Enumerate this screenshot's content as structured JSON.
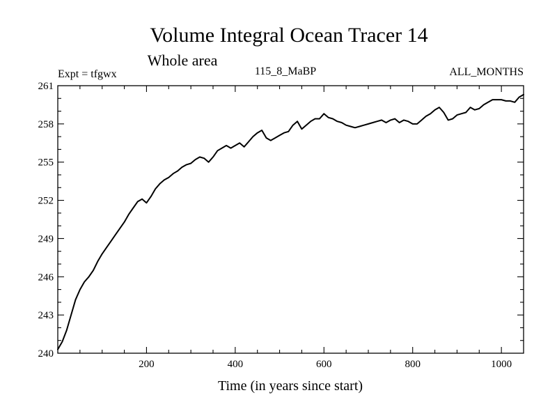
{
  "chart_data": {
    "type": "line",
    "title": "Volume Integral Ocean Tracer 14",
    "subtitle": "Whole area",
    "annotations": {
      "left": "Expt = tfgwx",
      "center": "115_8_MaBP",
      "right": "ALL_MONTHS"
    },
    "xlabel": "Time (in years since start)",
    "ylabel": "",
    "xlim": [
      0,
      1050
    ],
    "ylim": [
      240,
      261
    ],
    "xticks": [
      200,
      400,
      600,
      800,
      1000
    ],
    "yticks": [
      240,
      243,
      246,
      249,
      252,
      255,
      258,
      261
    ],
    "grid": false,
    "series": [
      {
        "color": "#000000",
        "x": [
          0,
          10,
          20,
          30,
          40,
          50,
          60,
          70,
          80,
          90,
          100,
          110,
          120,
          130,
          140,
          150,
          160,
          170,
          180,
          190,
          200,
          210,
          220,
          230,
          240,
          250,
          260,
          270,
          280,
          290,
          300,
          310,
          320,
          330,
          340,
          350,
          360,
          370,
          380,
          390,
          400,
          410,
          420,
          430,
          440,
          450,
          460,
          470,
          480,
          490,
          500,
          510,
          520,
          530,
          540,
          550,
          560,
          570,
          580,
          590,
          600,
          610,
          620,
          630,
          640,
          650,
          660,
          670,
          680,
          690,
          700,
          710,
          720,
          730,
          740,
          750,
          760,
          770,
          780,
          790,
          800,
          810,
          820,
          830,
          840,
          850,
          860,
          870,
          880,
          890,
          900,
          910,
          920,
          930,
          940,
          950,
          960,
          970,
          980,
          990,
          1000,
          1010,
          1020,
          1030,
          1040,
          1050
        ],
        "values": [
          240.3,
          240.9,
          241.8,
          243.0,
          244.2,
          245.0,
          245.6,
          246.0,
          246.5,
          247.2,
          247.8,
          248.3,
          248.8,
          249.3,
          249.8,
          250.3,
          250.9,
          251.4,
          251.9,
          252.1,
          251.8,
          252.3,
          252.9,
          253.3,
          253.6,
          253.8,
          254.1,
          254.3,
          254.6,
          254.8,
          254.9,
          255.2,
          255.4,
          255.3,
          255.0,
          255.4,
          255.9,
          256.1,
          256.3,
          256.1,
          256.3,
          256.5,
          256.2,
          256.6,
          257.0,
          257.3,
          257.5,
          256.9,
          256.7,
          256.9,
          257.1,
          257.3,
          257.4,
          257.9,
          258.2,
          257.6,
          257.9,
          258.2,
          258.4,
          258.4,
          258.8,
          258.5,
          258.4,
          258.2,
          258.1,
          257.9,
          257.8,
          257.7,
          257.8,
          257.9,
          258.0,
          258.1,
          258.2,
          258.3,
          258.1,
          258.3,
          258.4,
          258.1,
          258.3,
          258.2,
          258.0,
          258.0,
          258.3,
          258.6,
          258.8,
          259.1,
          259.3,
          258.9,
          258.3,
          258.4,
          258.7,
          258.8,
          258.9,
          259.3,
          259.1,
          259.2,
          259.5,
          259.7,
          259.9,
          259.9,
          259.9,
          259.8,
          259.8,
          259.7,
          260.1,
          260.3
        ]
      }
    ]
  }
}
